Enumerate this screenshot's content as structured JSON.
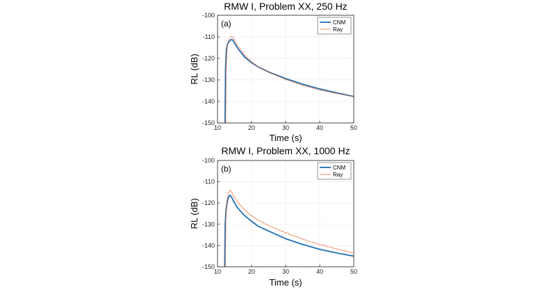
{
  "chart_data": [
    {
      "type": "line",
      "title": "RMW I, Problem XX, 250 Hz",
      "panel_label": "(a)",
      "xlabel": "Time (s)",
      "ylabel": "RL (dB)",
      "xlim": [
        10,
        50
      ],
      "ylim": [
        -150,
        -100
      ],
      "xticks": [
        10,
        20,
        30,
        40,
        50
      ],
      "yticks": [
        -100,
        -110,
        -120,
        -130,
        -140,
        -150
      ],
      "grid": true,
      "legend_position": "top-right",
      "series": [
        {
          "name": "CNM",
          "color": "#1f6fb5",
          "style": "solid",
          "x": [
            12.2,
            12.35,
            12.6,
            13.0,
            13.5,
            14.0,
            14.5,
            15.0,
            16,
            18,
            20,
            22,
            25,
            30,
            35,
            40,
            45,
            50
          ],
          "y": [
            -150,
            -125,
            -116,
            -113,
            -112,
            -111.3,
            -111.5,
            -113,
            -115.5,
            -119.5,
            -122,
            -124,
            -126.3,
            -129.4,
            -132,
            -134.2,
            -136,
            -137.7
          ]
        },
        {
          "name": "Ray",
          "color": "#e4541e",
          "style": "dotted",
          "x": [
            12.4,
            12.55,
            12.8,
            13.2,
            13.7,
            14.2,
            14.6,
            15.0,
            16,
            18,
            20,
            22,
            25,
            30,
            35,
            40,
            45,
            50
          ],
          "y": [
            -150,
            -124,
            -115,
            -112,
            -110.5,
            -109.8,
            -110.3,
            -111.5,
            -114.5,
            -118.5,
            -121.7,
            -124,
            -126.4,
            -129.8,
            -132.5,
            -134.7,
            -136.3,
            -137.8
          ]
        }
      ]
    },
    {
      "type": "line",
      "title": "RMW I, Problem XX, 1000 Hz",
      "panel_label": "(b)",
      "xlabel": "Time (s)",
      "ylabel": "RL (dB)",
      "xlim": [
        10,
        50
      ],
      "ylim": [
        -150,
        -100
      ],
      "xticks": [
        10,
        20,
        30,
        40,
        50
      ],
      "yticks": [
        -100,
        -110,
        -120,
        -130,
        -140,
        -150
      ],
      "grid": true,
      "legend_position": "top-right",
      "series": [
        {
          "name": "CNM",
          "color": "#1f6fb5",
          "style": "solid",
          "x": [
            12.1,
            12.25,
            12.5,
            12.9,
            13.3,
            13.7,
            14.2,
            15,
            16,
            18,
            20,
            22,
            25,
            30,
            35,
            40,
            45,
            50
          ],
          "y": [
            -150,
            -130,
            -123,
            -119,
            -117,
            -116.3,
            -117.5,
            -120,
            -122.5,
            -126,
            -128.6,
            -131,
            -133.2,
            -136.8,
            -139.5,
            -141.8,
            -143.5,
            -145
          ]
        },
        {
          "name": "Ray",
          "color": "#e4541e",
          "style": "dotted",
          "x": [
            12.3,
            12.45,
            12.7,
            13.0,
            13.4,
            13.8,
            14.2,
            15,
            16,
            18,
            20,
            22,
            25,
            30,
            35,
            40,
            45,
            50
          ],
          "y": [
            -150,
            -128,
            -120,
            -116.5,
            -114.5,
            -114,
            -115,
            -117.5,
            -119.8,
            -123.3,
            -126,
            -128.2,
            -130.6,
            -134,
            -137,
            -139.5,
            -141.6,
            -143.6
          ]
        }
      ]
    }
  ]
}
